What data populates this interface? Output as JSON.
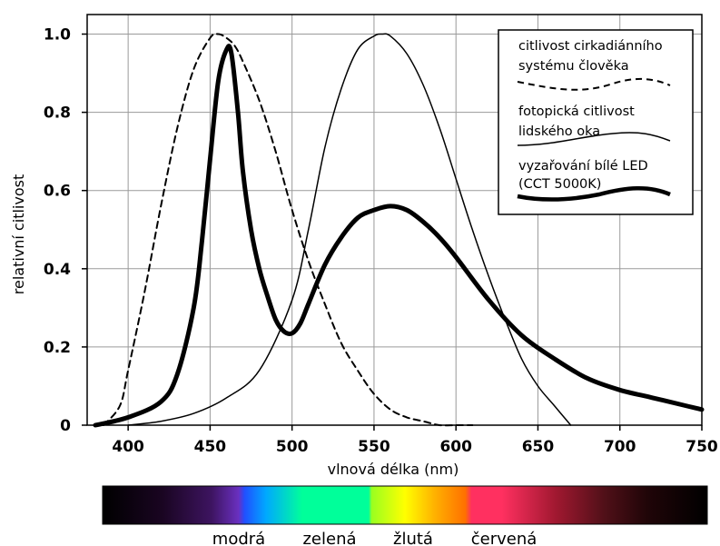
{
  "chart_data": {
    "type": "line",
    "title": "",
    "xlabel": "vlnová délka (nm)",
    "ylabel": "relativní citlivost",
    "xlim": [
      375,
      750
    ],
    "ylim": [
      0,
      1.05
    ],
    "xticks": [
      400,
      450,
      500,
      550,
      600,
      650,
      700,
      750
    ],
    "yticks": [
      0,
      0.2,
      0.4,
      0.6,
      0.8,
      1.0
    ],
    "ytick_labels": [
      "0",
      "0.2",
      "0.4",
      "0.6",
      "0.8",
      "1.0"
    ],
    "grid": true,
    "legend_position": "top-right",
    "series": [
      {
        "name": "citlivost cirkadiánního systému člověka",
        "legend_lines": [
          "citlivost cirkadiánního",
          "systému člověka"
        ],
        "style": "dashed",
        "x": [
          385,
          395,
          400,
          410,
          420,
          430,
          440,
          450,
          455,
          460,
          465,
          470,
          480,
          490,
          500,
          510,
          520,
          530,
          540,
          550,
          560,
          570,
          580,
          590,
          600,
          610
        ],
        "y": [
          0.0,
          0.05,
          0.14,
          0.34,
          0.56,
          0.76,
          0.91,
          0.99,
          1.0,
          0.99,
          0.97,
          0.93,
          0.83,
          0.7,
          0.55,
          0.42,
          0.31,
          0.21,
          0.14,
          0.08,
          0.04,
          0.02,
          0.01,
          0.0,
          0.0,
          0.0
        ]
      },
      {
        "name": "fotopická citlivost lidského oka",
        "legend_lines": [
          "fotopická citlivost",
          "lidského oka"
        ],
        "style": "thin",
        "x": [
          400,
          420,
          440,
          460,
          480,
          500,
          510,
          520,
          530,
          540,
          550,
          555,
          560,
          570,
          580,
          590,
          600,
          610,
          620,
          630,
          640,
          650,
          660,
          670
        ],
        "y": [
          0.0,
          0.01,
          0.03,
          0.07,
          0.14,
          0.32,
          0.5,
          0.71,
          0.86,
          0.96,
          0.995,
          1.0,
          0.995,
          0.95,
          0.87,
          0.76,
          0.63,
          0.5,
          0.38,
          0.27,
          0.17,
          0.1,
          0.05,
          0.0
        ]
      },
      {
        "name": "vyzařování bílé LED (CCT 5000K)",
        "legend_lines": [
          "vyzařování bílé LED",
          "(CCT 5000K)"
        ],
        "style": "thick",
        "x": [
          380,
          400,
          420,
          430,
          440,
          445,
          450,
          455,
          460,
          463,
          467,
          470,
          475,
          480,
          485,
          490,
          495,
          500,
          505,
          510,
          520,
          530,
          540,
          550,
          560,
          570,
          580,
          590,
          600,
          620,
          640,
          660,
          680,
          700,
          720,
          740,
          750
        ],
        "y": [
          0.0,
          0.02,
          0.06,
          0.13,
          0.3,
          0.47,
          0.68,
          0.88,
          0.96,
          0.95,
          0.8,
          0.65,
          0.5,
          0.4,
          0.33,
          0.27,
          0.24,
          0.235,
          0.26,
          0.31,
          0.41,
          0.48,
          0.53,
          0.55,
          0.56,
          0.55,
          0.52,
          0.48,
          0.43,
          0.32,
          0.23,
          0.17,
          0.12,
          0.09,
          0.07,
          0.05,
          0.04
        ]
      }
    ]
  },
  "spectrum": {
    "labels": [
      {
        "text": "modrá"
      },
      {
        "text": "zelená"
      },
      {
        "text": "žlutá"
      },
      {
        "text": "červená"
      }
    ]
  }
}
